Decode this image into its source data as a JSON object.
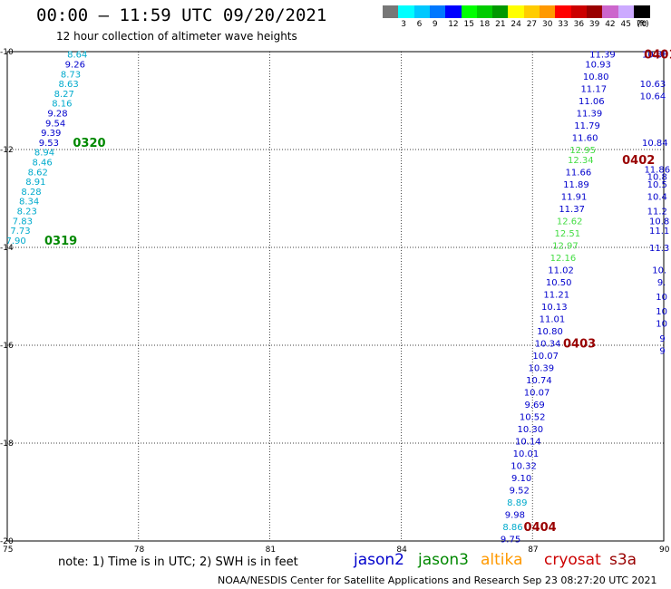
{
  "header": {
    "title": "00:00 – 11:59 UTC 09/20/2021",
    "subtitle": "12 hour collection of altimeter wave heights"
  },
  "color_scale": {
    "unit_label": "(ft)",
    "bins": [
      {
        "label": "",
        "color": "#777777"
      },
      {
        "label": "3",
        "color": "#00ffff"
      },
      {
        "label": "6",
        "color": "#00c8ff"
      },
      {
        "label": "9",
        "color": "#0078ff"
      },
      {
        "label": "12",
        "color": "#0000ff"
      },
      {
        "label": "15",
        "color": "#00ff00"
      },
      {
        "label": "18",
        "color": "#00cc00"
      },
      {
        "label": "21",
        "color": "#009900"
      },
      {
        "label": "24",
        "color": "#ffff00"
      },
      {
        "label": "27",
        "color": "#ffcc00"
      },
      {
        "label": "30",
        "color": "#ff9900"
      },
      {
        "label": "33",
        "color": "#ff0000"
      },
      {
        "label": "36",
        "color": "#cc0000"
      },
      {
        "label": "39",
        "color": "#990000"
      },
      {
        "label": "42",
        "color": "#cc66cc"
      },
      {
        "label": "45",
        "color": "#ccaaff"
      },
      {
        "label": "70",
        "color": "#000000"
      }
    ]
  },
  "footer": {
    "note": "note:  1) Time is in UTC; 2) SWH is in feet",
    "credit": "NOAA/NESDIS Center for Satellite Applications and Research     Sep 23 08:27:20 UTC 2021"
  },
  "satellites": [
    {
      "name": "jason2",
      "color": "#0000cc"
    },
    {
      "name": "jason3",
      "color": "#008800"
    },
    {
      "name": "altika",
      "color": "#ff9900"
    },
    {
      "name": "cryosat",
      "color": "#cc0000"
    },
    {
      "name": "s3a",
      "color": "#990000"
    }
  ],
  "chart_data": {
    "type": "scatter",
    "title": "00:00 – 11:59 UTC 09/20/2021",
    "xlabel": "",
    "ylabel": "",
    "xlim": [
      75,
      90
    ],
    "ylim": [
      -20,
      -10
    ],
    "x_ticks": [
      75,
      78,
      81,
      84,
      87,
      90
    ],
    "y_ticks": [
      -10,
      -12,
      -14,
      -16,
      -18,
      -20
    ],
    "x_tick_labels": [
      "75",
      "78",
      "81",
      "84",
      "87",
      "90"
    ],
    "y_tick_labels": [
      "-10",
      "-12",
      "-14",
      "-16",
      "-18",
      "-20"
    ],
    "grid": true,
    "series": [
      {
        "pass": "A",
        "color": "#00aacc",
        "points": [
          {
            "x": 76.6,
            "y": -10.05,
            "v": "8.64",
            "c": "#00aacc"
          },
          {
            "x": 76.55,
            "y": -10.25,
            "v": "9.26",
            "c": "#0000cc"
          },
          {
            "x": 76.45,
            "y": -10.45,
            "v": "8.73",
            "c": "#00aacc"
          },
          {
            "x": 76.4,
            "y": -10.65,
            "v": "8.63",
            "c": "#00aacc"
          },
          {
            "x": 76.3,
            "y": -10.85,
            "v": "8.27",
            "c": "#00aacc"
          },
          {
            "x": 76.25,
            "y": -11.05,
            "v": "8.16",
            "c": "#00aacc"
          },
          {
            "x": 76.15,
            "y": -11.25,
            "v": "9.28",
            "c": "#0000cc"
          },
          {
            "x": 76.1,
            "y": -11.45,
            "v": "9.54",
            "c": "#0000cc"
          },
          {
            "x": 76.0,
            "y": -11.65,
            "v": "9.39",
            "c": "#0000cc"
          },
          {
            "x": 75.95,
            "y": -11.85,
            "v": "9.53",
            "c": "#0000cc"
          },
          {
            "x": 75.85,
            "y": -12.05,
            "v": "8.94",
            "c": "#00aacc"
          },
          {
            "x": 75.8,
            "y": -12.25,
            "v": "8.46",
            "c": "#00aacc"
          },
          {
            "x": 75.7,
            "y": -12.45,
            "v": "8.62",
            "c": "#00aacc"
          },
          {
            "x": 75.65,
            "y": -12.65,
            "v": "8.91",
            "c": "#00aacc"
          },
          {
            "x": 75.55,
            "y": -12.85,
            "v": "8.28",
            "c": "#00aacc"
          },
          {
            "x": 75.5,
            "y": -13.05,
            "v": "8.34",
            "c": "#00aacc"
          },
          {
            "x": 75.45,
            "y": -13.25,
            "v": "8.23",
            "c": "#00aacc"
          },
          {
            "x": 75.35,
            "y": -13.45,
            "v": "7.83",
            "c": "#00aacc"
          },
          {
            "x": 75.3,
            "y": -13.65,
            "v": "7.73",
            "c": "#00aacc"
          },
          {
            "x": 75.2,
            "y": -13.85,
            "v": "7.90",
            "c": "#00aacc"
          }
        ]
      },
      {
        "pass": "B",
        "color": "#0000cc",
        "points": [
          {
            "x": 88.6,
            "y": -10.05,
            "v": "11.39",
            "c": "#0000cc"
          },
          {
            "x": 88.5,
            "y": -10.25,
            "v": "10.93",
            "c": "#0000cc"
          },
          {
            "x": 88.45,
            "y": -10.5,
            "v": "10.80",
            "c": "#0000cc"
          },
          {
            "x": 88.4,
            "y": -10.75,
            "v": "11.17",
            "c": "#0000cc"
          },
          {
            "x": 88.35,
            "y": -11.0,
            "v": "11.06",
            "c": "#0000cc"
          },
          {
            "x": 88.3,
            "y": -11.25,
            "v": "11.39",
            "c": "#0000cc"
          },
          {
            "x": 88.25,
            "y": -11.5,
            "v": "11.79",
            "c": "#0000cc"
          },
          {
            "x": 88.2,
            "y": -11.75,
            "v": "11.60",
            "c": "#0000cc"
          },
          {
            "x": 88.15,
            "y": -12.0,
            "v": "12.95",
            "c": "#44dd44"
          },
          {
            "x": 88.1,
            "y": -12.2,
            "v": "12.34",
            "c": "#44dd44"
          },
          {
            "x": 88.05,
            "y": -12.45,
            "v": "11.66",
            "c": "#0000cc"
          },
          {
            "x": 88.0,
            "y": -12.7,
            "v": "11.89",
            "c": "#0000cc"
          },
          {
            "x": 87.95,
            "y": -12.95,
            "v": "11.91",
            "c": "#0000cc"
          },
          {
            "x": 87.9,
            "y": -13.2,
            "v": "11.37",
            "c": "#0000cc"
          },
          {
            "x": 87.85,
            "y": -13.45,
            "v": "12.62",
            "c": "#44dd44"
          },
          {
            "x": 87.8,
            "y": -13.7,
            "v": "12.51",
            "c": "#44dd44"
          },
          {
            "x": 87.75,
            "y": -13.95,
            "v": "12.97",
            "c": "#44dd44"
          },
          {
            "x": 87.7,
            "y": -14.2,
            "v": "12.16",
            "c": "#44dd44"
          },
          {
            "x": 87.65,
            "y": -14.45,
            "v": "11.02",
            "c": "#0000cc"
          },
          {
            "x": 87.6,
            "y": -14.7,
            "v": "10.50",
            "c": "#0000cc"
          },
          {
            "x": 87.55,
            "y": -14.95,
            "v": "11.21",
            "c": "#0000cc"
          },
          {
            "x": 87.5,
            "y": -15.2,
            "v": "10.13",
            "c": "#0000cc"
          },
          {
            "x": 87.45,
            "y": -15.45,
            "v": "11.01",
            "c": "#0000cc"
          },
          {
            "x": 87.4,
            "y": -15.7,
            "v": "10.80",
            "c": "#0000cc"
          },
          {
            "x": 87.35,
            "y": -15.95,
            "v": "10.34",
            "c": "#0000cc"
          },
          {
            "x": 87.3,
            "y": -16.2,
            "v": "10.07",
            "c": "#0000cc"
          },
          {
            "x": 87.2,
            "y": -16.45,
            "v": "10.39",
            "c": "#0000cc"
          },
          {
            "x": 87.15,
            "y": -16.7,
            "v": "10.74",
            "c": "#0000cc"
          },
          {
            "x": 87.1,
            "y": -16.95,
            "v": "10.07",
            "c": "#0000cc"
          },
          {
            "x": 87.05,
            "y": -17.2,
            "v": "9.69",
            "c": "#0000cc"
          },
          {
            "x": 87.0,
            "y": -17.45,
            "v": "10.52",
            "c": "#0000cc"
          },
          {
            "x": 86.95,
            "y": -17.7,
            "v": "10.30",
            "c": "#0000cc"
          },
          {
            "x": 86.9,
            "y": -17.95,
            "v": "10.14",
            "c": "#0000cc"
          },
          {
            "x": 86.85,
            "y": -18.2,
            "v": "10.01",
            "c": "#0000cc"
          },
          {
            "x": 86.8,
            "y": -18.45,
            "v": "10.32",
            "c": "#0000cc"
          },
          {
            "x": 86.75,
            "y": -18.7,
            "v": "9.10",
            "c": "#0000cc"
          },
          {
            "x": 86.7,
            "y": -18.95,
            "v": "9.52",
            "c": "#0000cc"
          },
          {
            "x": 86.65,
            "y": -19.2,
            "v": "8.89",
            "c": "#00aacc"
          },
          {
            "x": 86.6,
            "y": -19.45,
            "v": "9.98",
            "c": "#0000cc"
          },
          {
            "x": 86.55,
            "y": -19.7,
            "v": "8.86",
            "c": "#00aacc"
          },
          {
            "x": 86.5,
            "y": -19.95,
            "v": "9.75",
            "c": "#0000cc"
          },
          {
            "x": 86.45,
            "y": -20.2,
            "v": "10.58",
            "c": "#0000cc"
          },
          {
            "x": 86.4,
            "y": -20.45,
            "v": "9.19",
            "c": "#0000cc"
          }
        ]
      },
      {
        "pass": "C",
        "color": "#0000cc",
        "points": [
          {
            "x": 89.8,
            "y": -10.05,
            "v": "10.88",
            "c": "#0000cc"
          },
          {
            "x": 89.75,
            "y": -10.65,
            "v": "10.63",
            "c": "#0000cc"
          },
          {
            "x": 89.75,
            "y": -10.9,
            "v": "10.64",
            "c": "#0000cc"
          },
          {
            "x": 89.8,
            "y": -11.85,
            "v": "10.84",
            "c": "#0000cc"
          },
          {
            "x": 89.85,
            "y": -12.4,
            "v": "11.86",
            "c": "#0000cc"
          },
          {
            "x": 89.85,
            "y": -12.55,
            "v": "10.8",
            "c": "#0000cc"
          },
          {
            "x": 89.85,
            "y": -12.7,
            "v": "10.5",
            "c": "#0000cc"
          },
          {
            "x": 89.85,
            "y": -12.95,
            "v": "10.4",
            "c": "#0000cc"
          },
          {
            "x": 89.85,
            "y": -13.25,
            "v": "11.2",
            "c": "#0000cc"
          },
          {
            "x": 89.9,
            "y": -13.45,
            "v": "10.8",
            "c": "#0000cc"
          },
          {
            "x": 89.9,
            "y": -13.65,
            "v": "11.1",
            "c": "#0000cc"
          },
          {
            "x": 89.9,
            "y": -14.0,
            "v": "11.3",
            "c": "#0000cc"
          },
          {
            "x": 89.9,
            "y": -14.45,
            "v": "10.",
            "c": "#0000cc"
          },
          {
            "x": 89.95,
            "y": -14.7,
            "v": "9.",
            "c": "#0000cc"
          },
          {
            "x": 89.95,
            "y": -15.0,
            "v": "10",
            "c": "#0000cc"
          },
          {
            "x": 89.95,
            "y": -15.3,
            "v": "10",
            "c": "#0000cc"
          },
          {
            "x": 89.95,
            "y": -15.55,
            "v": "10",
            "c": "#0000cc"
          },
          {
            "x": 89.97,
            "y": -15.85,
            "v": "9",
            "c": "#0000cc"
          },
          {
            "x": 89.97,
            "y": -16.1,
            "v": "9",
            "c": "#0000cc"
          }
        ]
      }
    ],
    "annotations": [
      {
        "text": "0320",
        "x": 76.5,
        "y": -11.85,
        "color": "#008800"
      },
      {
        "text": "0319",
        "x": 75.85,
        "y": -13.85,
        "color": "#008800"
      },
      {
        "text": "0401",
        "x": 89.55,
        "y": -10.05,
        "color": "#990000"
      },
      {
        "text": "0402",
        "x": 89.05,
        "y": -12.2,
        "color": "#990000"
      },
      {
        "text": "0403",
        "x": 87.7,
        "y": -15.95,
        "color": "#990000"
      },
      {
        "text": "0404",
        "x": 86.8,
        "y": -19.7,
        "color": "#990000"
      }
    ]
  }
}
